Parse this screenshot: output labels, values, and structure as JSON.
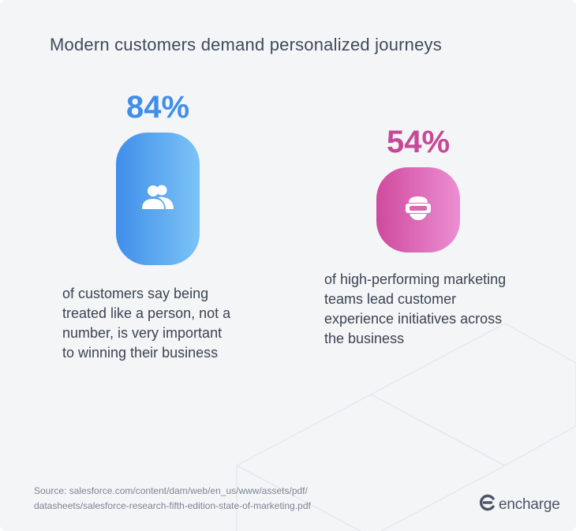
{
  "title": "Modern customers demand personalized journeys",
  "colors": {
    "blue_start": "#3f8eea",
    "blue_end": "#7cc4f6",
    "pink_start": "#cf4a9c",
    "pink_end": "#ec8ed3",
    "blue_text": "#3f8eea",
    "pink_text": "#c74897"
  },
  "chart_data": {
    "type": "bar",
    "categories": [
      "customers",
      "high-performing marketing teams"
    ],
    "values": [
      84,
      54
    ],
    "unit": "%",
    "ylim": [
      0,
      100
    ],
    "title": "Modern customers demand personalized journeys",
    "stats": [
      {
        "label": "84%",
        "icon": "users-icon",
        "desc_lines": [
          "of customers say being",
          "treated like a person, not a",
          "number, is very important",
          "to winning their business"
        ]
      },
      {
        "label": "54%",
        "icon": "vr-headset-icon",
        "desc_lines": [
          "of high-performing marketing",
          "teams lead customer",
          "experience initiatives across",
          "the business"
        ]
      }
    ]
  },
  "source": {
    "line1": "Source: salesforce.com/content/dam/web/en_us/www/assets/pdf/",
    "line2": "datasheets/salesforce-research-fifth-edition-state-of-marketing.pdf"
  },
  "logo": {
    "text": "encharge"
  }
}
